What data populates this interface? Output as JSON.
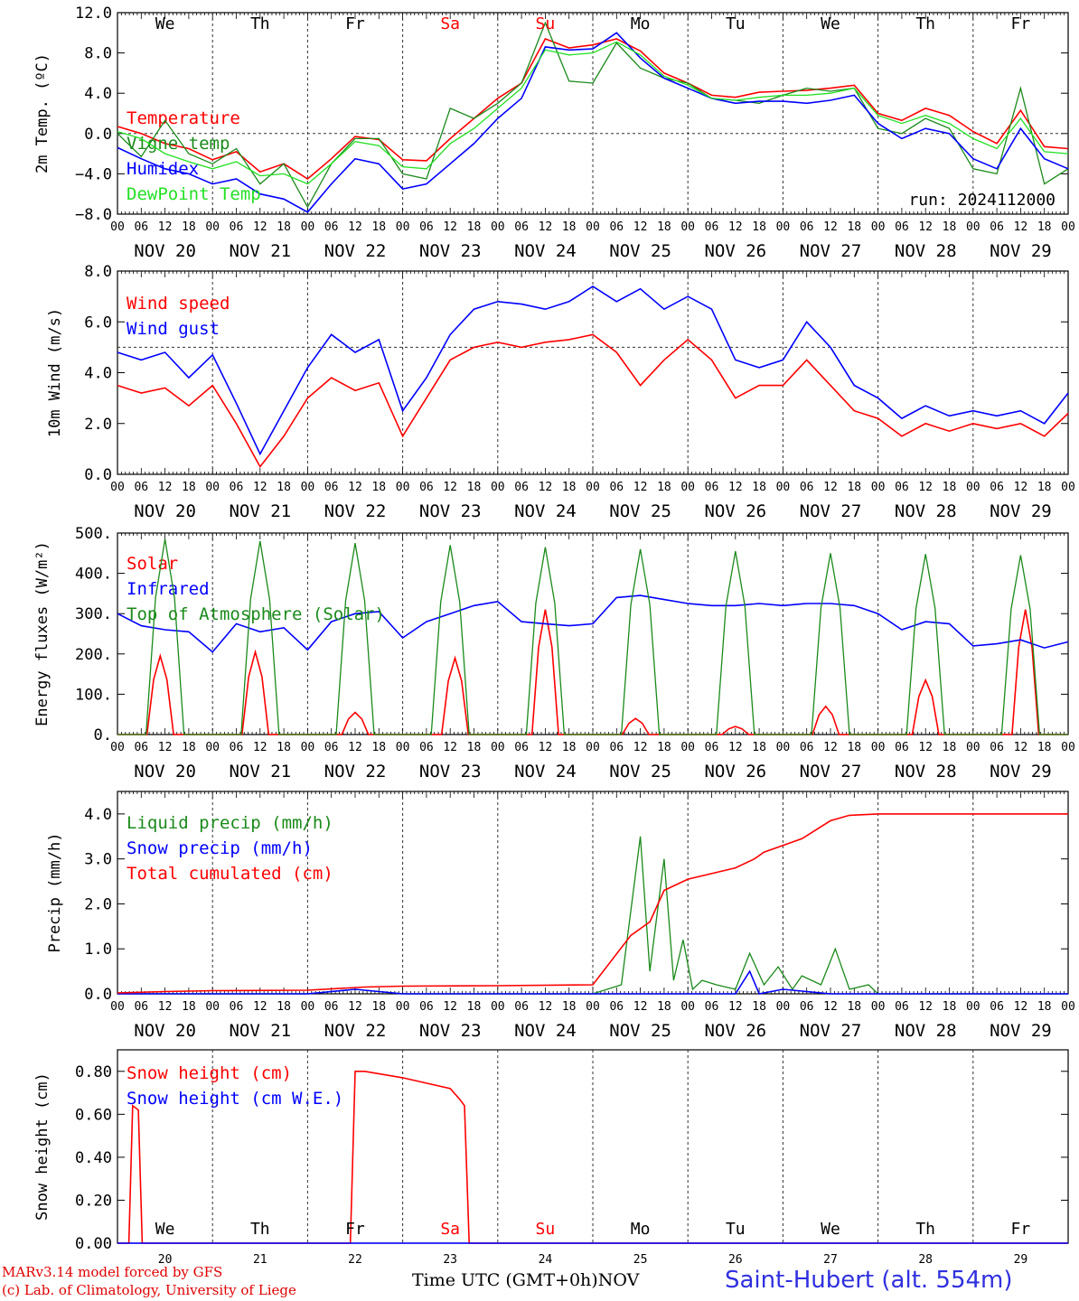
{
  "meta": {
    "run_label": "run: 2024112000",
    "station": "Saint-Hubert (alt. 554m)",
    "credit_line1": "MARv3.14 model forced by GFS",
    "credit_line2": "(c) Lab. of Climatology, University of Liege",
    "time_axis_title": "Time UTC (GMT+0h)",
    "month_label": "NOV"
  },
  "colors": {
    "red": "#ff0000",
    "darkgreen": "#1a8a1a",
    "blue": "#0000ff",
    "lightgreen": "#22e022",
    "weekend": "#ff0000",
    "axis": "#000000"
  },
  "time_axis": {
    "hour_ticks": [
      "00",
      "06",
      "12",
      "18"
    ],
    "end_tick": "00",
    "dates": [
      "NOV 20",
      "NOV 21",
      "NOV 22",
      "NOV 23",
      "NOV 24",
      "NOV 25",
      "NOV 26",
      "NOV 27",
      "NOV 28",
      "NOV 29"
    ],
    "weekdays": [
      "We",
      "Th",
      "Fr",
      "Sa",
      "Su",
      "Mo",
      "Tu",
      "We",
      "Th",
      "Fr"
    ],
    "weekend_flags": [
      false,
      false,
      false,
      true,
      true,
      false,
      false,
      false,
      false,
      false
    ],
    "day_numbers": [
      "20",
      "21",
      "22",
      "23",
      "24",
      "25",
      "26",
      "27",
      "28",
      "29"
    ]
  },
  "chart_data": [
    {
      "type": "line",
      "id": "temperature",
      "ylabel": "2m Temp. (ºC)",
      "ylim": [
        -8,
        12
      ],
      "yticks": [
        12,
        8,
        4,
        0,
        -4,
        -8
      ],
      "ytick_labels": [
        "12.0",
        "8.0",
        "4.0",
        "0.0",
        "−4.0",
        "−8.0"
      ],
      "dashed_reference": 0,
      "x_unit": "day",
      "series": [
        {
          "name": "Temperature",
          "color_key": "red",
          "x": [
            0,
            0.25,
            0.5,
            0.75,
            1,
            1.25,
            1.5,
            1.75,
            2,
            2.25,
            2.5,
            2.75,
            3,
            3.25,
            3.5,
            3.75,
            4,
            4.25,
            4.5,
            4.75,
            5,
            5.25,
            5.5,
            5.75,
            6,
            6.25,
            6.5,
            6.75,
            7,
            7.25,
            7.5,
            7.75,
            8,
            8.25,
            8.5,
            8.75,
            9,
            9.25,
            9.5,
            9.75,
            10
          ],
          "values": [
            0.7,
            0,
            -1,
            -1.5,
            -2.6,
            -1.8,
            -3.8,
            -3,
            -4.5,
            -2.5,
            -0.3,
            -0.6,
            -2.6,
            -2.7,
            -0.5,
            1.5,
            3.5,
            5,
            9.4,
            8.5,
            8.8,
            9.4,
            8.2,
            6,
            5,
            3.8,
            3.6,
            4.1,
            4.2,
            4.3,
            4.5,
            4.8,
            2,
            1.3,
            2.5,
            1.8,
            0.2,
            -1,
            2.3,
            -1.3,
            -1.5
          ]
        },
        {
          "name": "Vigne temp",
          "color_key": "darkgreen",
          "x": [
            0,
            0.25,
            0.5,
            0.75,
            1,
            1.25,
            1.5,
            1.75,
            2,
            2.25,
            2.5,
            2.75,
            3,
            3.25,
            3.5,
            3.75,
            4,
            4.25,
            4.5,
            4.75,
            5,
            5.25,
            5.5,
            5.75,
            6,
            6.25,
            6.5,
            6.75,
            7,
            7.25,
            7.5,
            7.75,
            8,
            8.25,
            8.5,
            8.75,
            9,
            9.25,
            9.5,
            9.75,
            10
          ],
          "values": [
            0,
            -2.3,
            1.3,
            -2,
            -3,
            -1.5,
            -5,
            -3,
            -7.3,
            -3,
            -0.5,
            -0.5,
            -4,
            -4.5,
            2.5,
            1.5,
            3,
            5,
            11,
            5.2,
            5,
            9,
            6.5,
            5.5,
            5,
            3.5,
            3.3,
            3,
            3.8,
            4.5,
            4.2,
            4.5,
            0.5,
            0,
            1.5,
            0.5,
            -3.5,
            -4,
            4.5,
            -5,
            -3.5
          ]
        },
        {
          "name": "Humidex",
          "color_key": "blue",
          "x": [
            0,
            0.25,
            0.5,
            0.75,
            1,
            1.25,
            1.5,
            1.75,
            2,
            2.25,
            2.5,
            2.75,
            3,
            3.25,
            3.5,
            3.75,
            4,
            4.25,
            4.5,
            4.75,
            5,
            5.25,
            5.5,
            5.75,
            6,
            6.25,
            6.5,
            6.75,
            7,
            7.25,
            7.5,
            7.75,
            8,
            8.25,
            8.5,
            8.75,
            9,
            9.25,
            9.5,
            9.75,
            10
          ],
          "values": [
            -1.4,
            -2.5,
            -3.5,
            -4,
            -5,
            -4.5,
            -6,
            -6.5,
            -7.8,
            -5,
            -2.5,
            -3,
            -5.5,
            -5,
            -3,
            -1,
            1.5,
            3.5,
            8.6,
            8.3,
            8.4,
            10,
            7.5,
            5.5,
            4.5,
            3.5,
            3,
            3.2,
            3.2,
            3,
            3.3,
            3.8,
            1,
            -0.5,
            0.5,
            0,
            -2.5,
            -3.5,
            0.5,
            -2.5,
            -3.5
          ]
        },
        {
          "name": "DewPoint Temp",
          "color_key": "lightgreen",
          "x": [
            0,
            0.25,
            0.5,
            0.75,
            1,
            1.25,
            1.5,
            1.75,
            2,
            2.25,
            2.5,
            2.75,
            3,
            3.25,
            3.5,
            3.75,
            4,
            4.25,
            4.5,
            4.75,
            5,
            5.25,
            5.5,
            5.75,
            6,
            6.25,
            6.5,
            6.75,
            7,
            7.25,
            7.5,
            7.75,
            8,
            8.25,
            8.5,
            8.75,
            9,
            9.25,
            9.5,
            9.75,
            10
          ],
          "values": [
            0.2,
            -0.5,
            -2,
            -2.8,
            -3.5,
            -2.8,
            -4.2,
            -4,
            -5,
            -3,
            -0.8,
            -1.2,
            -3.3,
            -3.5,
            -1,
            0.5,
            2.5,
            4.5,
            8.3,
            7.8,
            8,
            9.1,
            7.8,
            5.7,
            4.8,
            3.5,
            3.3,
            3.6,
            3.8,
            3.8,
            4,
            4.5,
            1.8,
            1,
            1.8,
            1,
            -0.5,
            -1.5,
            1.5,
            -1.8,
            -2
          ]
        }
      ]
    },
    {
      "type": "line",
      "id": "wind",
      "ylabel": "10m Wind (m/s)",
      "ylim": [
        0,
        8
      ],
      "yticks": [
        8,
        6,
        4,
        2,
        0
      ],
      "ytick_labels": [
        "8.0",
        "6.0",
        "4.0",
        "2.0",
        "0.0"
      ],
      "dashed_reference": 5,
      "x_unit": "day",
      "series": [
        {
          "name": "Wind speed",
          "color_key": "red",
          "x": [
            0,
            0.25,
            0.5,
            0.75,
            1,
            1.25,
            1.5,
            1.75,
            2,
            2.25,
            2.5,
            2.75,
            3,
            3.25,
            3.5,
            3.75,
            4,
            4.25,
            4.5,
            4.75,
            5,
            5.25,
            5.5,
            5.75,
            6,
            6.25,
            6.5,
            6.75,
            7,
            7.25,
            7.5,
            7.75,
            8,
            8.25,
            8.5,
            8.75,
            9,
            9.25,
            9.5,
            9.75,
            10
          ],
          "values": [
            3.5,
            3.2,
            3.4,
            2.7,
            3.5,
            2,
            0.3,
            1.5,
            3,
            3.8,
            3.3,
            3.6,
            1.5,
            3,
            4.5,
            5,
            5.2,
            5,
            5.2,
            5.3,
            5.5,
            4.8,
            3.5,
            4.5,
            5.3,
            4.5,
            3,
            3.5,
            3.5,
            4.5,
            3.5,
            2.5,
            2.2,
            1.5,
            2,
            1.7,
            2,
            1.8,
            2,
            1.5,
            2.4
          ]
        },
        {
          "name": "Wind gust",
          "color_key": "blue",
          "x": [
            0,
            0.25,
            0.5,
            0.75,
            1,
            1.25,
            1.5,
            1.75,
            2,
            2.25,
            2.5,
            2.75,
            3,
            3.25,
            3.5,
            3.75,
            4,
            4.25,
            4.5,
            4.75,
            5,
            5.25,
            5.5,
            5.75,
            6,
            6.25,
            6.5,
            6.75,
            7,
            7.25,
            7.5,
            7.75,
            8,
            8.25,
            8.5,
            8.75,
            9,
            9.25,
            9.5,
            9.75,
            10
          ],
          "values": [
            4.8,
            4.5,
            4.8,
            3.8,
            4.7,
            2.8,
            0.8,
            2.5,
            4.2,
            5.5,
            4.8,
            5.3,
            2.5,
            3.8,
            5.5,
            6.5,
            6.8,
            6.7,
            6.5,
            6.8,
            7.4,
            6.8,
            7.3,
            6.5,
            7.0,
            6.5,
            4.5,
            4.2,
            4.5,
            6.0,
            5.0,
            3.5,
            3.0,
            2.2,
            2.7,
            2.3,
            2.5,
            2.3,
            2.5,
            2.0,
            3.2
          ]
        }
      ]
    },
    {
      "type": "line",
      "id": "energy",
      "ylabel": "Energy fluxes (W/m²)",
      "ylim": [
        0,
        500
      ],
      "yticks": [
        500,
        400,
        300,
        200,
        100,
        0
      ],
      "ytick_labels": [
        "500.",
        "400.",
        "300.",
        "200.",
        "100.",
        "0."
      ],
      "x_unit": "day",
      "series": [
        {
          "name": "Solar",
          "color_key": "red",
          "peak_x": [
            0.45,
            1.45,
            2.5,
            3.55,
            4.5,
            5.45,
            6.5,
            7.45,
            8.5,
            9.55
          ],
          "peak_values": [
            195,
            205,
            55,
            190,
            310,
            40,
            20,
            70,
            135,
            310
          ]
        },
        {
          "name": "Infrared",
          "color_key": "blue",
          "x": [
            0,
            0.25,
            0.5,
            0.75,
            1,
            1.25,
            1.5,
            1.75,
            2,
            2.25,
            2.5,
            2.75,
            3,
            3.25,
            3.5,
            3.75,
            4,
            4.25,
            4.5,
            4.75,
            5,
            5.25,
            5.5,
            5.75,
            6,
            6.25,
            6.5,
            6.75,
            7,
            7.25,
            7.5,
            7.75,
            8,
            8.25,
            8.5,
            8.75,
            9,
            9.25,
            9.5,
            9.75,
            10
          ],
          "values": [
            300,
            270,
            260,
            255,
            205,
            275,
            255,
            265,
            210,
            280,
            300,
            305,
            240,
            280,
            300,
            320,
            330,
            280,
            275,
            270,
            275,
            340,
            345,
            335,
            325,
            320,
            320,
            325,
            320,
            325,
            325,
            320,
            300,
            260,
            280,
            275,
            220,
            225,
            235,
            215,
            230
          ]
        },
        {
          "name": "Top of Atmosphere (Solar)",
          "color_key": "darkgreen",
          "peak_x": [
            0.5,
            1.5,
            2.5,
            3.5,
            4.5,
            5.5,
            6.5,
            7.5,
            8.5,
            9.5
          ],
          "peak_values": [
            485,
            480,
            475,
            470,
            465,
            460,
            455,
            450,
            448,
            445
          ]
        }
      ]
    },
    {
      "type": "line",
      "id": "precip",
      "ylabel": "Precip (mm/h)",
      "ylim": [
        0,
        4.5
      ],
      "yticks": [
        4,
        3,
        2,
        1,
        0
      ],
      "ytick_labels": [
        "4.0",
        "3.0",
        "2.0",
        "1.0",
        "0.0"
      ],
      "x_unit": "day",
      "series": [
        {
          "name": "Liquid precip (mm/h)",
          "color_key": "darkgreen",
          "x": [
            0,
            1,
            2,
            2.5,
            3,
            4,
            5,
            5.3,
            5.5,
            5.6,
            5.75,
            5.85,
            5.95,
            6.05,
            6.15,
            6.3,
            6.5,
            6.65,
            6.8,
            6.95,
            7.1,
            7.2,
            7.4,
            7.55,
            7.7,
            7.9,
            8.0,
            8.5,
            10
          ],
          "values": [
            0,
            0,
            0,
            0.1,
            0,
            0,
            0,
            0.2,
            3.5,
            0.5,
            3.0,
            0.3,
            1.2,
            0.1,
            0.3,
            0.2,
            0.1,
            0.9,
            0.2,
            0.6,
            0.1,
            0.4,
            0.2,
            1.0,
            0.1,
            0.2,
            0,
            0,
            0
          ]
        },
        {
          "name": "Snow precip (mm/h)",
          "color_key": "blue",
          "x": [
            0,
            1,
            2,
            2.5,
            3,
            5,
            6.5,
            6.65,
            6.75,
            7,
            7.5,
            10
          ],
          "values": [
            0,
            0,
            0,
            0.1,
            0,
            0,
            0,
            0.5,
            0,
            0.1,
            0,
            0
          ]
        },
        {
          "name": "Total cumulated (cm)",
          "color_key": "red",
          "x": [
            0,
            0.5,
            1,
            2,
            2.6,
            3,
            4,
            5,
            5.4,
            5.6,
            5.75,
            6,
            6.3,
            6.5,
            6.7,
            6.8,
            7,
            7.2,
            7.5,
            7.7,
            8,
            10
          ],
          "values": [
            0.02,
            0.05,
            0.07,
            0.08,
            0.15,
            0.17,
            0.18,
            0.2,
            1.3,
            1.6,
            2.3,
            2.55,
            2.7,
            2.8,
            3.0,
            3.15,
            3.3,
            3.45,
            3.85,
            3.97,
            4.0,
            4.0
          ]
        }
      ]
    },
    {
      "type": "line",
      "id": "snow",
      "ylabel": "Snow height (cm)",
      "ylim": [
        0,
        0.9
      ],
      "yticks": [
        0.8,
        0.6,
        0.4,
        0.2,
        0
      ],
      "ytick_labels": [
        "0.80",
        "0.60",
        "0.40",
        "0.20",
        "0.00"
      ],
      "x_unit": "day",
      "series": [
        {
          "name": "Snow height (cm)",
          "color_key": "red",
          "x": [
            0,
            0.12,
            0.16,
            0.22,
            0.26,
            2.45,
            2.5,
            2.6,
            3,
            3.5,
            3.6,
            3.65,
            3.7,
            4,
            10
          ],
          "values": [
            0,
            0,
            0.64,
            0.62,
            0,
            0,
            0.8,
            0.8,
            0.77,
            0.72,
            0.67,
            0.64,
            0,
            0,
            0
          ]
        },
        {
          "name": "Snow height (cm W.E.)",
          "color_key": "blue",
          "x": [
            0,
            10
          ],
          "values": [
            0,
            0
          ]
        }
      ]
    }
  ]
}
